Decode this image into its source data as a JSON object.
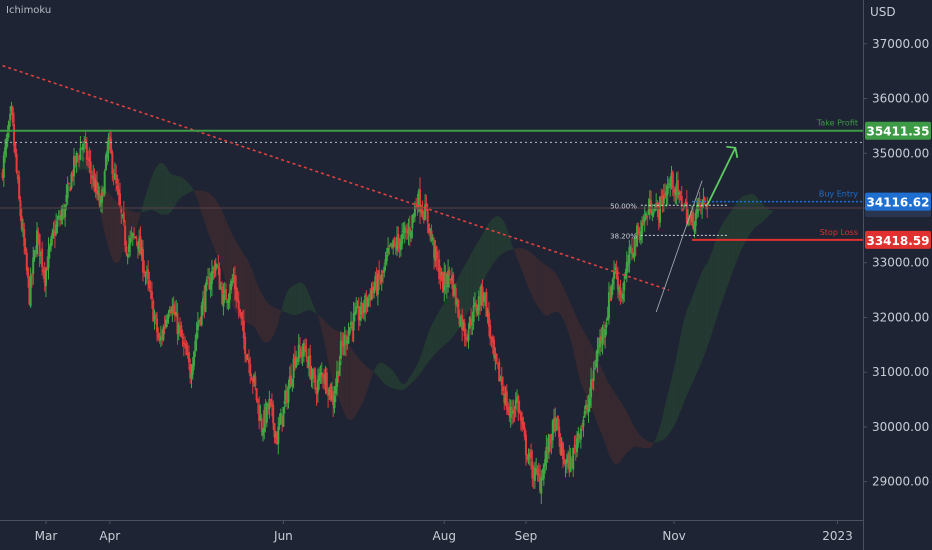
{
  "header": {
    "indicator_label": "Ichimoku"
  },
  "chart_data": {
    "type": "candlestick",
    "currency": "USD",
    "ylim": [
      28300,
      37800
    ],
    "y_ticks": [
      29000,
      30000,
      31000,
      32000,
      33000,
      34000,
      35000,
      36000,
      37000
    ],
    "y_tick_labels": [
      "29000.00",
      "30000.00",
      "31000.00",
      "32000.00",
      "33000.00",
      "34000.00",
      "35000.00",
      "36000.00",
      "37000.00"
    ],
    "x_labels": [
      "Mar",
      "Apr",
      "Jun",
      "Aug",
      "Sep",
      "Nov",
      "2023"
    ],
    "x_label_days": [
      43,
      68,
      136,
      199,
      231,
      289,
      353
    ],
    "xlim": [
      25,
      363
    ],
    "price_path": [
      [
        26,
        34600
      ],
      [
        30,
        35700
      ],
      [
        33,
        34100
      ],
      [
        37,
        32400
      ],
      [
        40,
        33500
      ],
      [
        43,
        32800
      ],
      [
        47,
        33600
      ],
      [
        51,
        34000
      ],
      [
        54,
        34700
      ],
      [
        58,
        35200
      ],
      [
        62,
        34500
      ],
      [
        65,
        34000
      ],
      [
        68,
        35200
      ],
      [
        72,
        34100
      ],
      [
        75,
        33300
      ],
      [
        79,
        33500
      ],
      [
        83,
        32700
      ],
      [
        88,
        31500
      ],
      [
        92,
        32300
      ],
      [
        96,
        31700
      ],
      [
        100,
        31000
      ],
      [
        103,
        31900
      ],
      [
        107,
        32600
      ],
      [
        110,
        33000
      ],
      [
        113,
        32300
      ],
      [
        117,
        32700
      ],
      [
        121,
        31600
      ],
      [
        125,
        30800
      ],
      [
        128,
        30000
      ],
      [
        131,
        30400
      ],
      [
        134,
        29800
      ],
      [
        138,
        30600
      ],
      [
        141,
        31300
      ],
      [
        145,
        31400
      ],
      [
        149,
        30700
      ],
      [
        152,
        31000
      ],
      [
        156,
        30500
      ],
      [
        159,
        31400
      ],
      [
        163,
        31900
      ],
      [
        167,
        32100
      ],
      [
        171,
        32500
      ],
      [
        175,
        32700
      ],
      [
        178,
        33200
      ],
      [
        182,
        33400
      ],
      [
        186,
        33600
      ],
      [
        189,
        34200
      ],
      [
        193,
        33800
      ],
      [
        196,
        33100
      ],
      [
        199,
        32600
      ],
      [
        202,
        32800
      ],
      [
        205,
        32100
      ],
      [
        208,
        31700
      ],
      [
        211,
        32100
      ],
      [
        215,
        32500
      ],
      [
        219,
        31200
      ],
      [
        222,
        30800
      ],
      [
        225,
        30200
      ],
      [
        228,
        30500
      ],
      [
        231,
        29700
      ],
      [
        234,
        29200
      ],
      [
        237,
        29000
      ],
      [
        240,
        29600
      ],
      [
        243,
        30100
      ],
      [
        246,
        29400
      ],
      [
        249,
        29300
      ],
      [
        252,
        29900
      ],
      [
        256,
        30400
      ],
      [
        259,
        31300
      ],
      [
        263,
        32000
      ],
      [
        266,
        32900
      ],
      [
        269,
        32400
      ],
      [
        272,
        33100
      ],
      [
        275,
        33500
      ],
      [
        278,
        33800
      ],
      [
        281,
        34100
      ],
      [
        283,
        33900
      ],
      [
        286,
        34300
      ],
      [
        289,
        34500
      ],
      [
        291,
        34200
      ],
      [
        293,
        34100
      ],
      [
        296,
        33700
      ],
      [
        299,
        34000
      ],
      [
        302,
        34100
      ]
    ],
    "trendline": {
      "from": [
        26,
        36600
      ],
      "to": [
        287,
        32500
      ]
    },
    "take_profit": {
      "label": "Take Profit",
      "value": 35411.35,
      "value_label": "35411.35"
    },
    "buy_entry": {
      "label": "Buy Entry",
      "value": 34116.62,
      "value_label": "34116.62"
    },
    "stop_loss": {
      "label": "Stop Loss",
      "value": 33418.59,
      "value_label": "33418.59"
    },
    "fib_levels": [
      {
        "label": "50.00%",
        "value": 34050
      },
      {
        "label": "38.20%",
        "value": 33500
      }
    ],
    "resistance_dotted": 35200,
    "current_price_line": 34000,
    "colors": {
      "background": "#1e2433",
      "up": "#3fa842",
      "down": "#e23c3c",
      "take_profit": "#3d9b45",
      "buy_entry": "#1f6fd1",
      "stop_loss": "#e0302f",
      "trendline": "#e0403f",
      "cloud_bull": "#243b33",
      "cloud_bear": "#3a2a30"
    }
  }
}
